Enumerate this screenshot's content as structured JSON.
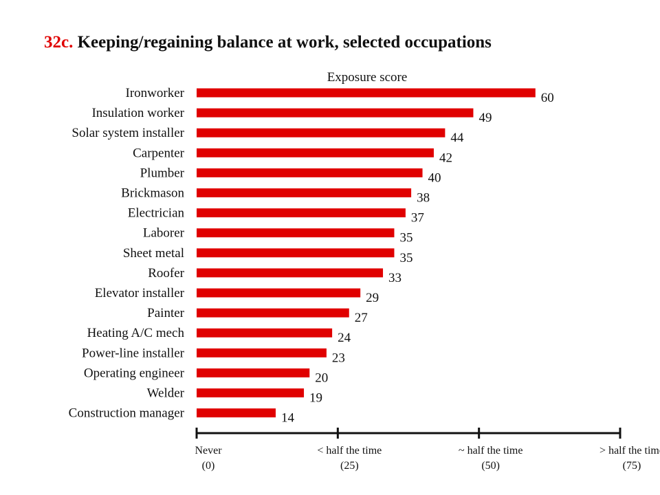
{
  "title_number": "32c.",
  "title_text": "Keeping/regaining balance at work, selected occupations",
  "chart_data": {
    "type": "bar",
    "orientation": "horizontal",
    "title": "32c. Keeping/regaining balance at work, selected occupations",
    "xlabel": "Exposure score",
    "ylabel": "",
    "xlim": [
      0,
      75
    ],
    "bar_color": "#e00000",
    "grid": false,
    "categories": [
      "Ironworker",
      "Insulation worker",
      "Solar system installer",
      "Carpenter",
      "Plumber",
      "Brickmason",
      "Electrician",
      "Laborer",
      "Sheet metal",
      "Roofer",
      "Elevator installer",
      "Painter",
      "Heating A/C mech",
      "Power-line installer",
      "Operating engineer",
      "Welder",
      "Construction manager"
    ],
    "values": [
      60,
      49,
      44,
      42,
      40,
      38,
      37,
      35,
      35,
      33,
      29,
      27,
      24,
      23,
      20,
      19,
      14
    ],
    "axis_ticks": [
      {
        "value": 0,
        "label": "Never",
        "sublabel": "(0)"
      },
      {
        "value": 25,
        "label": "< half the time",
        "sublabel": "(25)"
      },
      {
        "value": 50,
        "label": "~ half the time",
        "sublabel": "(50)"
      },
      {
        "value": 75,
        "label": "> half the time",
        "sublabel": "(75)"
      }
    ]
  }
}
